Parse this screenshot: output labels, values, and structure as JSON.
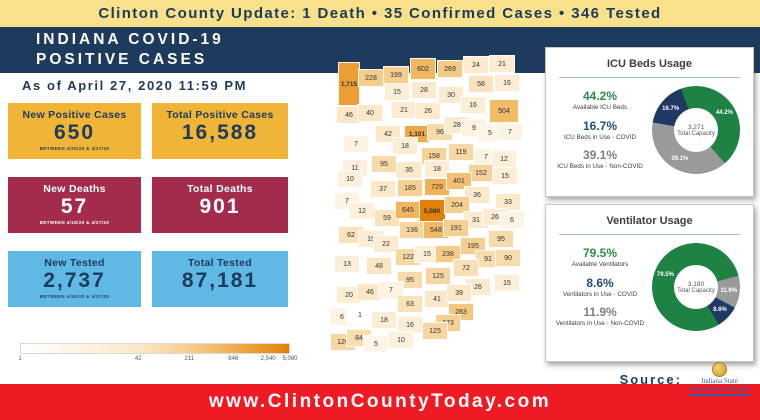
{
  "banner": {
    "text": "Clinton County Update: 1 Death • 35 Confirmed Cases • 346 Tested"
  },
  "header": {
    "title_line1": "INDIANA COVID-19",
    "title_line2": "POSITIVE CASES",
    "as_of": "As of April 27, 2020 11:59 PM"
  },
  "stats": [
    {
      "label": "New Positive Cases",
      "value": "650",
      "note": "BETWEEN 4/26/20 & 4/27/20",
      "theme": "gold"
    },
    {
      "label": "Total Positive Cases",
      "value": "16,588",
      "note": "",
      "theme": "gold"
    },
    {
      "label": "New Deaths",
      "value": "57",
      "note": "BETWEEN 4/18/20 & 4/27/20",
      "theme": "crimson"
    },
    {
      "label": "Total Deaths",
      "value": "901",
      "note": "",
      "theme": "crimson"
    },
    {
      "label": "New Tested",
      "value": "2,737",
      "note": "BETWEEN 4/26/20 & 4/27/20",
      "theme": "blue"
    },
    {
      "label": "Total Tested",
      "value": "87,181",
      "note": "",
      "theme": "blue"
    }
  ],
  "source": {
    "label": "Source:",
    "org_line1": "Indiana State",
    "org_line2": "Department of Health"
  },
  "footer": {
    "url": "www.ClintonCountyToday.com"
  },
  "colors": {
    "navy": "#1E3A5C",
    "banner_yellow": "#F9E18C",
    "gold": "#F0B437",
    "crimson": "#A32C4C",
    "light_blue": "#5FB9E4",
    "footer_red": "#EE1B24",
    "green": "#1E8245",
    "slice_navy": "#1F3864",
    "slice_gray": "#9A9A9A",
    "map_orange_max": "#E08108"
  },
  "chart_data": [
    {
      "type": "heatmap",
      "legend_ticks": [
        1,
        42,
        211,
        846,
        2540,
        5080
      ],
      "max": 5080,
      "scale_stops": [
        {
          "v": 1,
          "c": "#FFFFFF"
        },
        {
          "v": 42,
          "c": "#FBE8C8"
        },
        {
          "v": 211,
          "c": "#F5CE8E"
        },
        {
          "v": 846,
          "c": "#EFAF52"
        },
        {
          "v": 2540,
          "c": "#E89422"
        },
        {
          "v": 5080,
          "c": "#E08108"
        }
      ],
      "counties": [
        [
          1715,
          19,
          30,
          22,
          44
        ],
        [
          228,
          41,
          24
        ],
        [
          199,
          66,
          21
        ],
        [
          602,
          93,
          15,
          26,
          22
        ],
        [
          269,
          120,
          15
        ],
        [
          24,
          146,
          11
        ],
        [
          21,
          172,
          10
        ],
        [
          15,
          67,
          38
        ],
        [
          28,
          94,
          36
        ],
        [
          30,
          121,
          41
        ],
        [
          58,
          151,
          30
        ],
        [
          16,
          177,
          29
        ],
        [
          46,
          19,
          61
        ],
        [
          40,
          40,
          59
        ],
        [
          21,
          74,
          56
        ],
        [
          26,
          98,
          57
        ],
        [
          16,
          143,
          51
        ],
        [
          504,
          174,
          57,
          30,
          24
        ],
        [
          42,
          58,
          80
        ],
        [
          1101,
          87,
          80
        ],
        [
          96,
          110,
          78
        ],
        [
          28,
          127,
          71
        ],
        [
          9,
          144,
          74
        ],
        [
          5,
          160,
          79
        ],
        [
          7,
          180,
          78
        ],
        [
          7,
          26,
          90
        ],
        [
          18,
          75,
          92
        ],
        [
          95,
          54,
          110
        ],
        [
          158,
          104,
          102
        ],
        [
          119,
          131,
          98
        ],
        [
          7,
          156,
          103
        ],
        [
          12,
          174,
          105
        ],
        [
          11,
          25,
          114
        ],
        [
          10,
          20,
          125
        ],
        [
          35,
          79,
          116
        ],
        [
          18,
          107,
          115
        ],
        [
          152,
          151,
          119
        ],
        [
          15,
          175,
          122
        ],
        [
          37,
          53,
          135
        ],
        [
          185,
          80,
          134
        ],
        [
          729,
          107,
          133
        ],
        [
          401,
          129,
          127
        ],
        [
          36,
          147,
          141
        ],
        [
          33,
          178,
          148
        ],
        [
          7,
          17,
          147
        ],
        [
          12,
          32,
          157
        ],
        [
          59,
          57,
          164
        ],
        [
          645,
          78,
          156
        ],
        [
          5080,
          102,
          157,
          27,
          24
        ],
        [
          204,
          127,
          151
        ],
        [
          31,
          146,
          166
        ],
        [
          26,
          165,
          163
        ],
        [
          6,
          182,
          166
        ],
        [
          62,
          21,
          181
        ],
        [
          19,
          41,
          185
        ],
        [
          22,
          56,
          190
        ],
        [
          136,
          82,
          176
        ],
        [
          548,
          106,
          176
        ],
        [
          191,
          126,
          174
        ],
        [
          195,
          143,
          192
        ],
        [
          95,
          171,
          185
        ],
        [
          13,
          17,
          210
        ],
        [
          48,
          49,
          212
        ],
        [
          122,
          78,
          203
        ],
        [
          15,
          97,
          200
        ],
        [
          238,
          118,
          200
        ],
        [
          91,
          158,
          205
        ],
        [
          90,
          178,
          204
        ],
        [
          72,
          136,
          214
        ],
        [
          125,
          108,
          222
        ],
        [
          95,
          80,
          226
        ],
        [
          26,
          148,
          233
        ],
        [
          15,
          177,
          229
        ],
        [
          20,
          19,
          241
        ],
        [
          46,
          40,
          238
        ],
        [
          7,
          61,
          236
        ],
        [
          63,
          80,
          250
        ],
        [
          41,
          107,
          245
        ],
        [
          39,
          129,
          239
        ],
        [
          283,
          131,
          258
        ],
        [
          173,
          118,
          269
        ],
        [
          6,
          12,
          263
        ],
        [
          1,
          30,
          261
        ],
        [
          18,
          54,
          266
        ],
        [
          16,
          80,
          271
        ],
        [
          125,
          105,
          277
        ],
        [
          126,
          13,
          288
        ],
        [
          84,
          29,
          284
        ],
        [
          5,
          46,
          290
        ],
        [
          10,
          71,
          286
        ]
      ]
    },
    {
      "type": "pie",
      "title": "ICU Beds Usage",
      "center_value": "3,271",
      "center_label": "Total Capacity",
      "start_angle": -20,
      "slices": [
        {
          "label": "Available ICU Beds",
          "pct": 44.2,
          "display": "44.2%",
          "color": "#1E8245",
          "text_color": "#2E8B4A"
        },
        {
          "label": "ICU Beds in Use - Non-COVID",
          "pct": 39.1,
          "display": "39.1%",
          "color": "#9A9A9A",
          "text_color": "#808080"
        },
        {
          "label": "ICU Beds in Use - COVID",
          "pct": 16.7,
          "display": "16.7%",
          "color": "#1F3864",
          "text_color": "#1F4E79"
        }
      ],
      "stats_order": [
        0,
        2,
        1
      ]
    },
    {
      "type": "pie",
      "title": "Ventilator Usage",
      "center_value": "3,180",
      "center_label": "Total Capacity",
      "start_angle": 149,
      "slices": [
        {
          "label": "Available Ventilators",
          "pct": 79.5,
          "display": "79.5%",
          "color": "#1E8245",
          "text_color": "#2E8B4A"
        },
        {
          "label": "Ventilators in Use - Non-COVID",
          "pct": 11.9,
          "display": "11.9%",
          "color": "#9A9A9A",
          "text_color": "#808080"
        },
        {
          "label": "Ventilators in Use - COVID",
          "pct": 8.6,
          "display": "8.6%",
          "color": "#1F3864",
          "text_color": "#1F4E79"
        }
      ],
      "stats_order": [
        0,
        2,
        1
      ]
    }
  ]
}
